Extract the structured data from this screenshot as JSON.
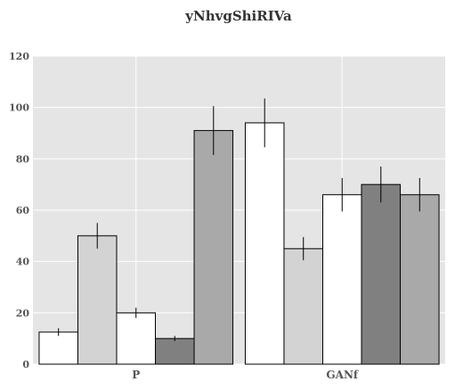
{
  "chart_data": {
    "type": "bar",
    "title": "yNhvgShiRIVa",
    "xlabel": "",
    "ylabel": "",
    "categories": [
      "P",
      "GANf"
    ],
    "ylim": [
      0,
      120
    ],
    "yticks": [
      0,
      20,
      40,
      60,
      80,
      100,
      120
    ],
    "grid": true,
    "legend": "none",
    "series": [
      {
        "color": "#ffffff",
        "values": [
          12.5,
          94
        ],
        "errors": [
          1.5,
          9.5
        ]
      },
      {
        "color": "#d3d3d3",
        "values": [
          50,
          45
        ],
        "errors": [
          5,
          4.5
        ]
      },
      {
        "color": "#ffffff",
        "values": [
          20,
          66
        ],
        "errors": [
          2,
          6.5
        ]
      },
      {
        "color": "#808080",
        "values": [
          10,
          70
        ],
        "errors": [
          1,
          7
        ]
      },
      {
        "color": "#a9a9a9",
        "values": [
          91,
          66
        ],
        "errors": [
          9.5,
          6.5
        ]
      }
    ]
  }
}
